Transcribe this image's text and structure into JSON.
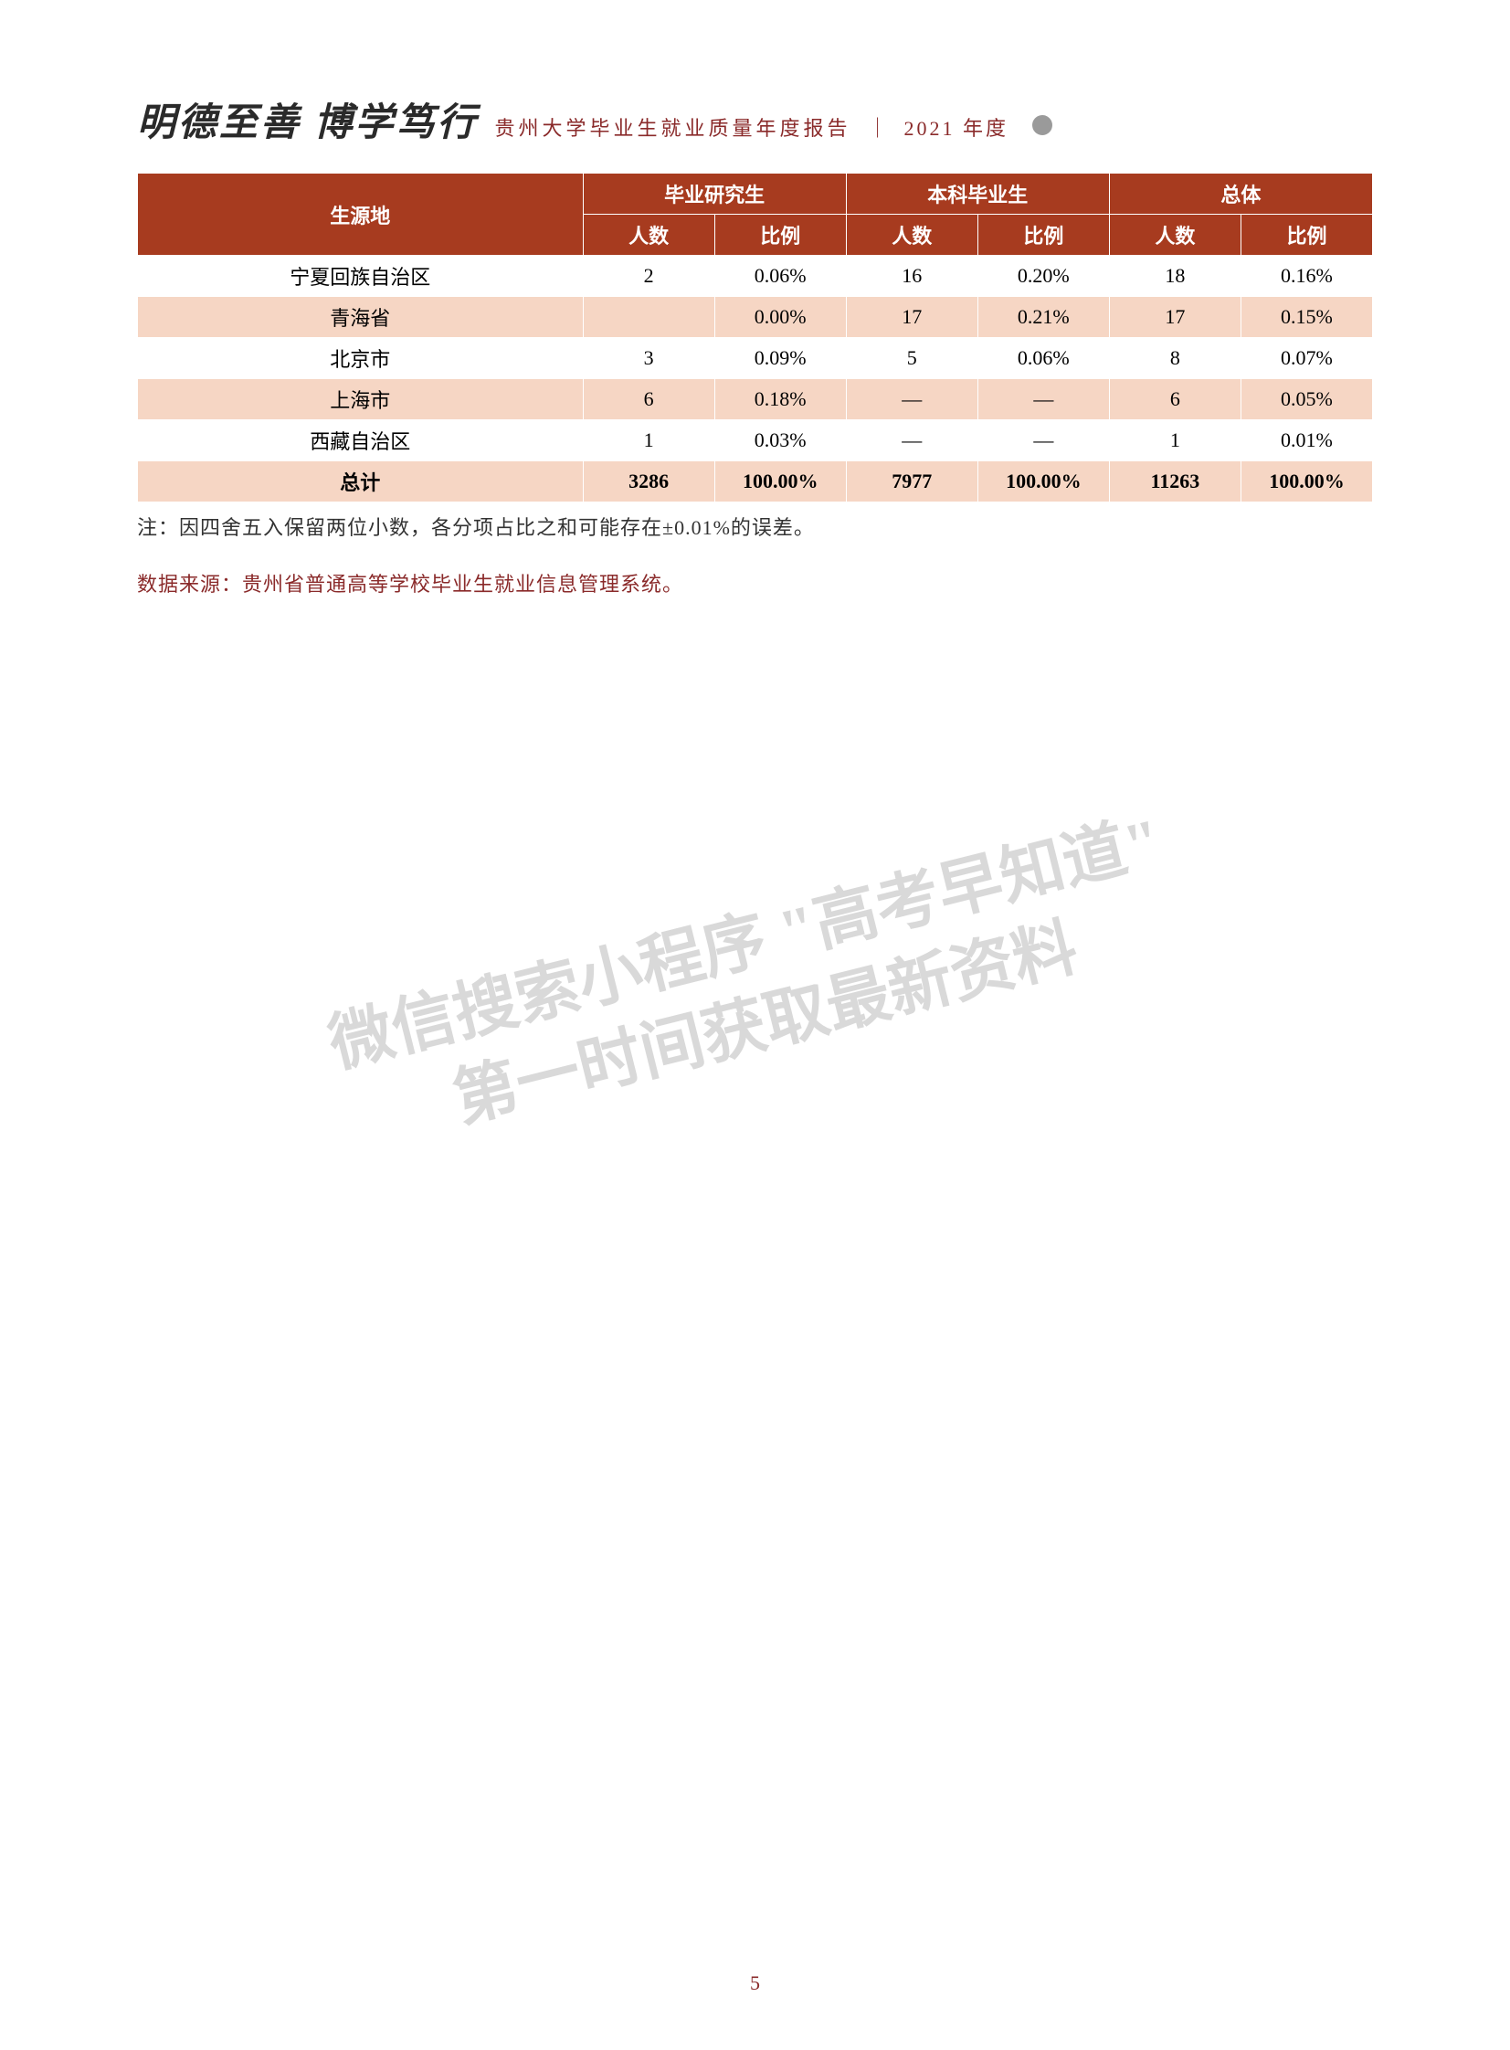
{
  "header": {
    "calligraphy": "明德至善 博学笃行",
    "report_title": "贵州大学毕业生就业质量年度报告",
    "divider": "｜",
    "year": "2021 年度"
  },
  "table": {
    "type": "table",
    "header_bg": "#a73b1f",
    "header_fg": "#ffffff",
    "tint_bg": "#f6d6c4",
    "white_bg": "#ffffff",
    "border_color": "#ffffff",
    "fontsize": 22,
    "col_origin": "生源地",
    "group_grad": "毕业研究生",
    "group_undergrad": "本科毕业生",
    "group_total": "总体",
    "sub_count": "人数",
    "sub_ratio": "比例",
    "rows": [
      {
        "origin": "宁夏回族自治区",
        "g_cnt": "2",
        "g_pct": "0.06%",
        "u_cnt": "16",
        "u_pct": "0.20%",
        "t_cnt": "18",
        "t_pct": "0.16%",
        "tint": false
      },
      {
        "origin": "青海省",
        "g_cnt": "",
        "g_pct": "0.00%",
        "u_cnt": "17",
        "u_pct": "0.21%",
        "t_cnt": "17",
        "t_pct": "0.15%",
        "tint": true
      },
      {
        "origin": "北京市",
        "g_cnt": "3",
        "g_pct": "0.09%",
        "u_cnt": "5",
        "u_pct": "0.06%",
        "t_cnt": "8",
        "t_pct": "0.07%",
        "tint": false
      },
      {
        "origin": "上海市",
        "g_cnt": "6",
        "g_pct": "0.18%",
        "u_cnt": "—",
        "u_pct": "—",
        "t_cnt": "6",
        "t_pct": "0.05%",
        "tint": true
      },
      {
        "origin": "西藏自治区",
        "g_cnt": "1",
        "g_pct": "0.03%",
        "u_cnt": "—",
        "u_pct": "—",
        "t_cnt": "1",
        "t_pct": "0.01%",
        "tint": false
      }
    ],
    "total": {
      "label": "总计",
      "g_cnt": "3286",
      "g_pct": "100.00%",
      "u_cnt": "7977",
      "u_pct": "100.00%",
      "t_cnt": "11263",
      "t_pct": "100.00%"
    }
  },
  "note": "注：因四舍五入保留两位小数，各分项占比之和可能存在±0.01%的误差。",
  "source": "数据来源：贵州省普通高等学校毕业生就业信息管理系统。",
  "watermark": {
    "line1": "微信搜索小程序 \"高考早知道\"",
    "line2": "第一时间获取最新资料"
  },
  "page_number": "5",
  "colors": {
    "brand_red": "#8a2a2a",
    "header_red": "#a73b1f",
    "page_bg": "#ffffff",
    "watermark": "rgba(120,120,120,0.28)"
  }
}
